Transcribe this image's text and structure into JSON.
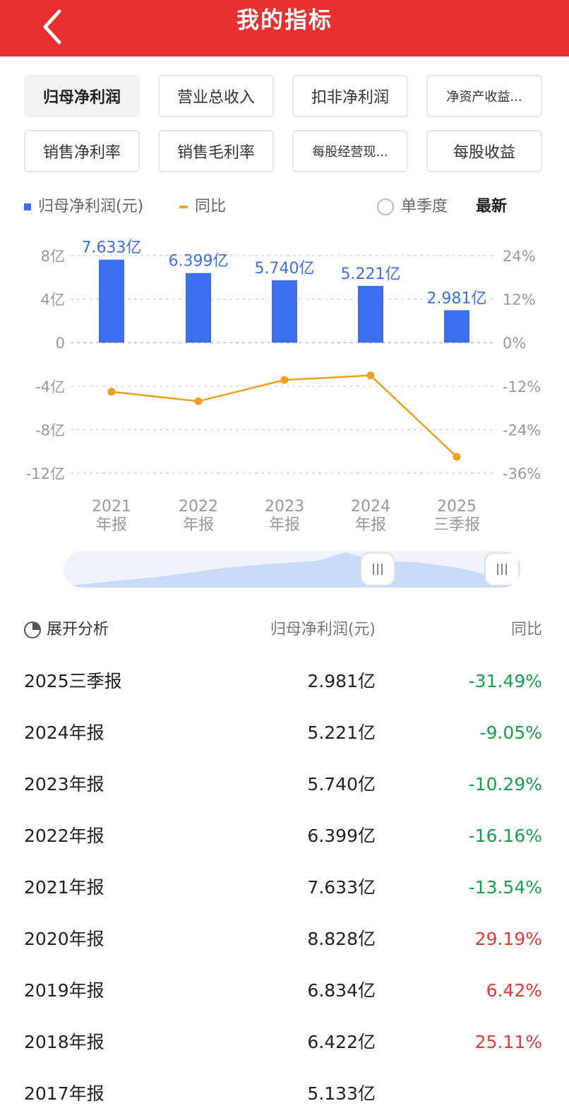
{
  "header": {
    "title": "我的指标",
    "back_icon": "chevron-left-icon"
  },
  "tabs": [
    {
      "label": "归母净利润",
      "active": true
    },
    {
      "label": "营业总收入",
      "active": false
    },
    {
      "label": "扣非净利润",
      "active": false
    },
    {
      "label": "净资产收益...",
      "active": false
    },
    {
      "label": "销售净利率",
      "active": false
    },
    {
      "label": "销售毛利率",
      "active": false
    },
    {
      "label": "每股经营现...",
      "active": false
    },
    {
      "label": "每股收益",
      "active": false
    }
  ],
  "legend": {
    "bar_label": "归母净利润(元)",
    "line_label": "同比",
    "single_quarter_label": "单季度",
    "latest_label": "最新"
  },
  "chart_data": {
    "type": "bar",
    "categories": [
      "2021\n年报",
      "2022\n年报",
      "2023\n年报",
      "2024\n年报",
      "2025\n三季报"
    ],
    "series": [
      {
        "name": "归母净利润(元)",
        "type": "bar",
        "values": [
          7.633,
          6.399,
          5.74,
          5.221,
          2.981
        ],
        "data_labels": [
          "7.633亿",
          "6.399亿",
          "5.740亿",
          "5.221亿",
          "2.981亿"
        ],
        "color": "#3c6ff0"
      },
      {
        "name": "同比",
        "type": "line",
        "values": [
          -13.54,
          -16.16,
          -10.29,
          -9.05,
          -31.49
        ],
        "color": "#f0a020"
      }
    ],
    "y_left": {
      "ticks": [
        8,
        4,
        0,
        -4,
        -8,
        -12
      ],
      "tick_labels": [
        "8亿",
        "4亿",
        "0",
        "-4亿",
        "-8亿",
        "-12亿"
      ],
      "ylim": [
        -12,
        8
      ]
    },
    "y_right": {
      "ticks": [
        24,
        12,
        0,
        -12,
        -24,
        -36
      ],
      "tick_labels": [
        "24%",
        "12%",
        "0%",
        "-12%",
        "-24%",
        "-36%"
      ],
      "ylim": [
        -36,
        24
      ]
    },
    "grid": true,
    "colors": {
      "bar": "#3c6ff0",
      "line": "#f0a020",
      "label": "#3c6ff0",
      "axis_text": "#999999",
      "grid": "#cccccc"
    }
  },
  "table": {
    "expand_label": "展开分析",
    "col_value": "归母净利润(元)",
    "col_yoy": "同比",
    "rows": [
      {
        "period": "2025三季报",
        "value": "2.981亿",
        "yoy": "-31.49%",
        "dir": "neg"
      },
      {
        "period": "2024年报",
        "value": "5.221亿",
        "yoy": "-9.05%",
        "dir": "neg"
      },
      {
        "period": "2023年报",
        "value": "5.740亿",
        "yoy": "-10.29%",
        "dir": "neg"
      },
      {
        "period": "2022年报",
        "value": "6.399亿",
        "yoy": "-16.16%",
        "dir": "neg"
      },
      {
        "period": "2021年报",
        "value": "7.633亿",
        "yoy": "-13.54%",
        "dir": "neg"
      },
      {
        "period": "2020年报",
        "value": "8.828亿",
        "yoy": "29.19%",
        "dir": "pos"
      },
      {
        "period": "2019年报",
        "value": "6.834亿",
        "yoy": "6.42%",
        "dir": "pos"
      },
      {
        "period": "2018年报",
        "value": "6.422亿",
        "yoy": "25.11%",
        "dir": "pos"
      },
      {
        "period": "2017年报",
        "value": "5.133亿",
        "yoy": "",
        "dir": "pos"
      }
    ]
  },
  "colors": {
    "header_bg": "#e8302f",
    "negative": "#1a9d4e",
    "positive": "#e23a3a"
  }
}
